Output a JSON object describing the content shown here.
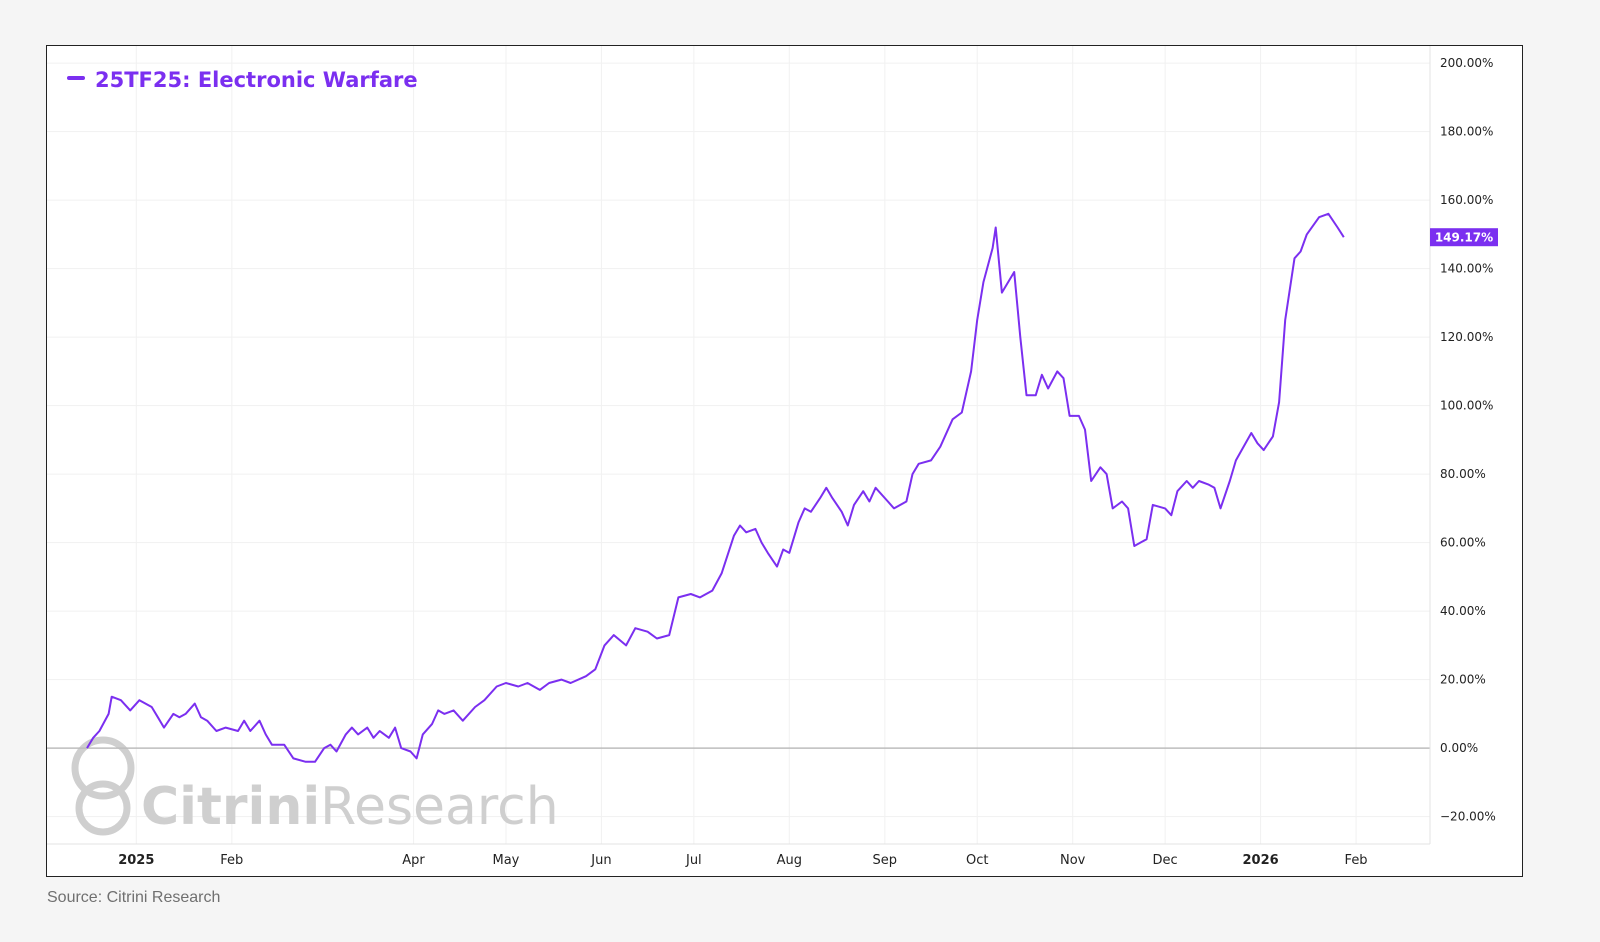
{
  "footer": {
    "source": "Source: Citrini Research"
  },
  "watermark": {
    "bold": "Citrini",
    "light": "Research"
  },
  "colors": {
    "line": "#7b2ff0",
    "badge": "#7b2ff0",
    "grid": "#f1f1f1",
    "zero": "#bdbdbd",
    "watermark": "#cfcfcf"
  },
  "chart_data": {
    "type": "line",
    "title": "",
    "series": [
      {
        "name": "25TF25: Electronic Warfare",
        "last_label": "149.17%",
        "points": [
          [
            "2024-12-16",
            0
          ],
          [
            "2024-12-18",
            3
          ],
          [
            "2024-12-20",
            5
          ],
          [
            "2024-12-23",
            10
          ],
          [
            "2024-12-24",
            15
          ],
          [
            "2024-12-27",
            14
          ],
          [
            "2024-12-30",
            11
          ],
          [
            "2025-01-02",
            14
          ],
          [
            "2025-01-06",
            12
          ],
          [
            "2025-01-08",
            9
          ],
          [
            "2025-01-10",
            6
          ],
          [
            "2025-01-13",
            10
          ],
          [
            "2025-01-15",
            9
          ],
          [
            "2025-01-17",
            10
          ],
          [
            "2025-01-20",
            13
          ],
          [
            "2025-01-22",
            9
          ],
          [
            "2025-01-24",
            8
          ],
          [
            "2025-01-27",
            5
          ],
          [
            "2025-01-30",
            6
          ],
          [
            "2025-02-03",
            5
          ],
          [
            "2025-02-05",
            8
          ],
          [
            "2025-02-07",
            5
          ],
          [
            "2025-02-10",
            8
          ],
          [
            "2025-02-12",
            4
          ],
          [
            "2025-02-14",
            1
          ],
          [
            "2025-02-18",
            1
          ],
          [
            "2025-02-21",
            -3
          ],
          [
            "2025-02-25",
            -4
          ],
          [
            "2025-02-28",
            -4
          ],
          [
            "2025-03-03",
            0
          ],
          [
            "2025-03-05",
            1
          ],
          [
            "2025-03-07",
            -1
          ],
          [
            "2025-03-10",
            4
          ],
          [
            "2025-03-12",
            6
          ],
          [
            "2025-03-14",
            4
          ],
          [
            "2025-03-17",
            6
          ],
          [
            "2025-03-19",
            3
          ],
          [
            "2025-03-21",
            5
          ],
          [
            "2025-03-24",
            3
          ],
          [
            "2025-03-26",
            6
          ],
          [
            "2025-03-28",
            0
          ],
          [
            "2025-03-31",
            -1
          ],
          [
            "2025-04-02",
            -3
          ],
          [
            "2025-04-04",
            4
          ],
          [
            "2025-04-07",
            7
          ],
          [
            "2025-04-09",
            11
          ],
          [
            "2025-04-11",
            10
          ],
          [
            "2025-04-14",
            11
          ],
          [
            "2025-04-17",
            8
          ],
          [
            "2025-04-21",
            12
          ],
          [
            "2025-04-24",
            14
          ],
          [
            "2025-04-28",
            18
          ],
          [
            "2025-05-01",
            19
          ],
          [
            "2025-05-05",
            18
          ],
          [
            "2025-05-08",
            19
          ],
          [
            "2025-05-12",
            17
          ],
          [
            "2025-05-15",
            19
          ],
          [
            "2025-05-19",
            20
          ],
          [
            "2025-05-22",
            19
          ],
          [
            "2025-05-27",
            21
          ],
          [
            "2025-05-30",
            23
          ],
          [
            "2025-06-02",
            30
          ],
          [
            "2025-06-05",
            33
          ],
          [
            "2025-06-09",
            30
          ],
          [
            "2025-06-12",
            35
          ],
          [
            "2025-06-16",
            34
          ],
          [
            "2025-06-19",
            32
          ],
          [
            "2025-06-23",
            33
          ],
          [
            "2025-06-26",
            44
          ],
          [
            "2025-06-30",
            45
          ],
          [
            "2025-07-03",
            44
          ],
          [
            "2025-07-07",
            46
          ],
          [
            "2025-07-10",
            51
          ],
          [
            "2025-07-14",
            62
          ],
          [
            "2025-07-16",
            65
          ],
          [
            "2025-07-18",
            63
          ],
          [
            "2025-07-21",
            64
          ],
          [
            "2025-07-23",
            60
          ],
          [
            "2025-07-25",
            57
          ],
          [
            "2025-07-28",
            53
          ],
          [
            "2025-07-30",
            58
          ],
          [
            "2025-08-01",
            57
          ],
          [
            "2025-08-04",
            66
          ],
          [
            "2025-08-06",
            70
          ],
          [
            "2025-08-08",
            69
          ],
          [
            "2025-08-11",
            73
          ],
          [
            "2025-08-13",
            76
          ],
          [
            "2025-08-15",
            73
          ],
          [
            "2025-08-18",
            69
          ],
          [
            "2025-08-20",
            65
          ],
          [
            "2025-08-22",
            71
          ],
          [
            "2025-08-25",
            75
          ],
          [
            "2025-08-27",
            72
          ],
          [
            "2025-08-29",
            76
          ],
          [
            "2025-09-02",
            72
          ],
          [
            "2025-09-04",
            70
          ],
          [
            "2025-09-08",
            72
          ],
          [
            "2025-09-10",
            80
          ],
          [
            "2025-09-12",
            83
          ],
          [
            "2025-09-16",
            84
          ],
          [
            "2025-09-19",
            88
          ],
          [
            "2025-09-23",
            96
          ],
          [
            "2025-09-26",
            98
          ],
          [
            "2025-09-29",
            110
          ],
          [
            "2025-10-01",
            125
          ],
          [
            "2025-10-03",
            136
          ],
          [
            "2025-10-06",
            146
          ],
          [
            "2025-10-07",
            152
          ],
          [
            "2025-10-09",
            133
          ],
          [
            "2025-10-13",
            139
          ],
          [
            "2025-10-15",
            120
          ],
          [
            "2025-10-17",
            103
          ],
          [
            "2025-10-20",
            103
          ],
          [
            "2025-10-22",
            109
          ],
          [
            "2025-10-24",
            105
          ],
          [
            "2025-10-27",
            110
          ],
          [
            "2025-10-29",
            108
          ],
          [
            "2025-10-31",
            97
          ],
          [
            "2025-11-03",
            97
          ],
          [
            "2025-11-05",
            93
          ],
          [
            "2025-11-07",
            78
          ],
          [
            "2025-11-10",
            82
          ],
          [
            "2025-11-12",
            80
          ],
          [
            "2025-11-14",
            70
          ],
          [
            "2025-11-17",
            72
          ],
          [
            "2025-11-19",
            70
          ],
          [
            "2025-11-21",
            59
          ],
          [
            "2025-11-25",
            61
          ],
          [
            "2025-11-27",
            71
          ],
          [
            "2025-12-01",
            70
          ],
          [
            "2025-12-03",
            68
          ],
          [
            "2025-12-05",
            75
          ],
          [
            "2025-12-08",
            78
          ],
          [
            "2025-12-10",
            76
          ],
          [
            "2025-12-12",
            78
          ],
          [
            "2025-12-15",
            77
          ],
          [
            "2025-12-17",
            76
          ],
          [
            "2025-12-19",
            70
          ],
          [
            "2025-12-22",
            78
          ],
          [
            "2025-12-24",
            84
          ],
          [
            "2025-12-29",
            92
          ],
          [
            "2025-12-31",
            89
          ],
          [
            "2026-01-02",
            87
          ],
          [
            "2026-01-05",
            91
          ],
          [
            "2026-01-07",
            101
          ],
          [
            "2026-01-09",
            125
          ],
          [
            "2026-01-12",
            143
          ],
          [
            "2026-01-14",
            145
          ],
          [
            "2026-01-16",
            150
          ],
          [
            "2026-01-20",
            155
          ],
          [
            "2026-01-23",
            156
          ],
          [
            "2026-01-26",
            152
          ],
          [
            "2026-01-28",
            149.17
          ]
        ]
      }
    ],
    "xticks": [
      {
        "date": "2025-01-01",
        "label": "2025",
        "bold": true
      },
      {
        "date": "2025-02-01",
        "label": "Feb"
      },
      {
        "date": "2025-04-01",
        "label": "Apr"
      },
      {
        "date": "2025-05-01",
        "label": "May"
      },
      {
        "date": "2025-06-01",
        "label": "Jun"
      },
      {
        "date": "2025-07-01",
        "label": "Jul"
      },
      {
        "date": "2025-08-01",
        "label": "Aug"
      },
      {
        "date": "2025-09-01",
        "label": "Sep"
      },
      {
        "date": "2025-10-01",
        "label": "Oct"
      },
      {
        "date": "2025-11-01",
        "label": "Nov"
      },
      {
        "date": "2025-12-01",
        "label": "Dec"
      },
      {
        "date": "2026-01-01",
        "label": "2026",
        "bold": true
      },
      {
        "date": "2026-02-01",
        "label": "Feb"
      }
    ],
    "yticks": [
      {
        "value": 200,
        "label": "200.00%"
      },
      {
        "value": 180,
        "label": "180.00%"
      },
      {
        "value": 160,
        "label": "160.00%"
      },
      {
        "value": 140,
        "label": "140.00%"
      },
      {
        "value": 120,
        "label": "120.00%"
      },
      {
        "value": 100,
        "label": "100.00%"
      },
      {
        "value": 80,
        "label": "80.00%"
      },
      {
        "value": 60,
        "label": "60.00%"
      },
      {
        "value": 40,
        "label": "40.00%"
      },
      {
        "value": 20,
        "label": "20.00%"
      },
      {
        "value": 0,
        "label": "0.00%"
      },
      {
        "value": -20,
        "label": "−20.00%"
      }
    ],
    "xlim": [
      "2024-12-03",
      "2026-02-25"
    ],
    "ylim": [
      -28,
      205
    ],
    "grid": true,
    "legend_position": "top-left",
    "y_axis_side": "right"
  }
}
